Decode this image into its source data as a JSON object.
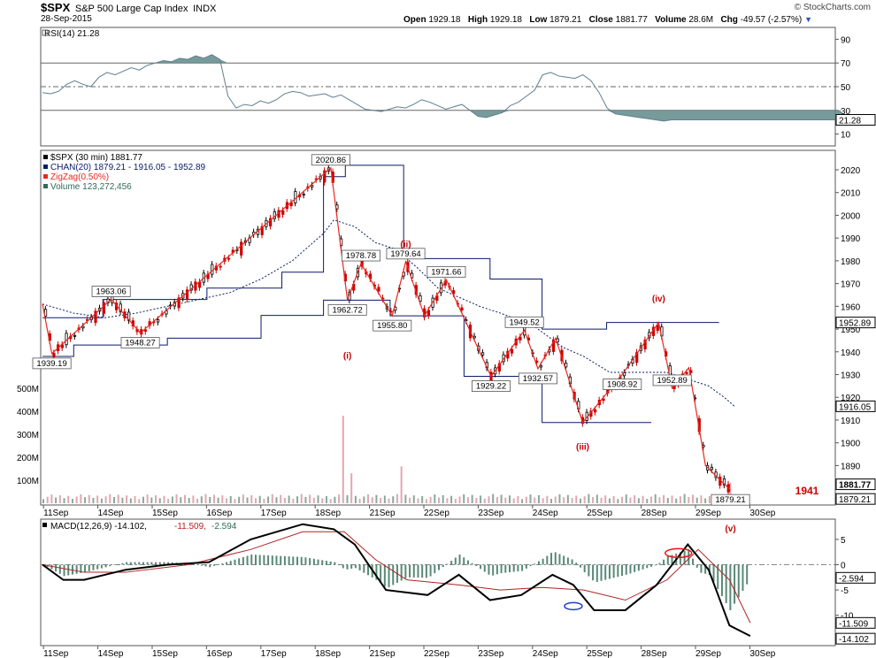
{
  "header": {
    "symbol": "$SPX",
    "name": "S&P 500 Large Cap Index",
    "exchange": "INDX",
    "date": "28-Sep-2015",
    "open_label": "Open",
    "open": "1929.18",
    "high_label": "High",
    "high": "1929.18",
    "low_label": "Low",
    "low": "1879.21",
    "close_label": "Close",
    "close": "1881.77",
    "volume_label": "Volume",
    "volume": "28.6M",
    "chg_label": "Chg",
    "chg": "-49.57 (-2.57%)",
    "credit": "© StockCharts.com"
  },
  "colors": {
    "up": "#000000",
    "down": "#cc0000",
    "zigzag": "#e8281e",
    "channel": "#0a1a6b",
    "rsi": "#5f7f8f",
    "rsi_fill": "#5f8a8a",
    "macd": "#000000",
    "signal": "#b22222",
    "histogram": "#2e6b55",
    "volume_up": "#8aa898",
    "volume_down": "#e0a8b0",
    "annotation": "#cc0000",
    "highlight_red": "#ee1111",
    "highlight_blue": "#1f3fbf"
  },
  "chart_data": [
    {
      "type": "line",
      "panel": "rsi",
      "legend": "RSI(14) 21.28",
      "ylim": [
        0,
        100
      ],
      "yticks": [
        10,
        30,
        50,
        70,
        90
      ],
      "reference_lines": [
        30,
        50,
        70
      ],
      "last_value_label": "21.28",
      "x": [
        0,
        5,
        10,
        15,
        20,
        25,
        30,
        35,
        40,
        45,
        50,
        55,
        60,
        65,
        70,
        75,
        80,
        85,
        90,
        95,
        100,
        105,
        110,
        115,
        120,
        125,
        130,
        135,
        140,
        145,
        150,
        155,
        160,
        165,
        170,
        175,
        180,
        185,
        190,
        195,
        200,
        205,
        210,
        215,
        220,
        225,
        230,
        235,
        240,
        245,
        250,
        255,
        260,
        265,
        270,
        275,
        280,
        285,
        290,
        295,
        300,
        305,
        310,
        315,
        320,
        325,
        330,
        335,
        340,
        345,
        350,
        355,
        360,
        365,
        370,
        375,
        380,
        385,
        390,
        395,
        400,
        405,
        410,
        415,
        420,
        425,
        430,
        435,
        440,
        445,
        450,
        455,
        460,
        465,
        470,
        475,
        480,
        485,
        490,
        495
      ],
      "values": [
        45,
        44,
        46,
        52,
        55,
        52,
        50,
        58,
        62,
        60,
        63,
        66,
        64,
        68,
        70,
        72,
        71,
        74,
        73,
        76,
        74,
        77,
        73,
        42,
        32,
        35,
        34,
        38,
        36,
        39,
        44,
        46,
        45,
        42,
        43,
        44,
        41,
        43,
        39,
        35,
        31,
        30,
        29,
        31,
        33,
        32,
        35,
        39,
        37,
        34,
        31,
        33,
        35,
        30,
        25,
        24,
        26,
        28,
        34,
        37,
        42,
        47,
        60,
        62,
        59,
        58,
        57,
        60,
        55,
        45,
        32,
        27,
        26,
        25,
        24,
        23,
        22,
        21,
        22,
        22,
        22,
        22,
        22,
        22,
        22,
        22,
        22,
        22,
        22,
        22,
        22,
        22,
        22,
        22,
        22,
        22,
        22,
        22,
        22,
        22
      ]
    },
    {
      "type": "line",
      "panel": "price",
      "legend": [
        "$SPX (30 min) 1881.77",
        "CHAN(20) 1879.21 - 1916.05 - 1952.89",
        "ZigZag(0.50%)",
        "Volume 123,272,456"
      ],
      "ylim": [
        1875,
        2027
      ],
      "yticks": [
        1890,
        1900,
        1910,
        1920,
        1930,
        1940,
        1950,
        1960,
        1970,
        1980,
        1990,
        2000,
        2010,
        2020
      ],
      "right_labels": [
        "1952.89",
        "1916.05",
        "1881.77",
        "1879.21"
      ],
      "zigzag": {
        "points": [
          [
            0,
            1961
          ],
          [
            9,
            1939.19
          ],
          [
            66,
            1963.06
          ],
          [
            94,
            1948.27
          ],
          [
            277,
            2020.86
          ],
          [
            293,
            1962.72
          ],
          [
            306,
            1978.78
          ],
          [
            336,
            1955.8
          ],
          [
            349,
            1979.64
          ],
          [
            367,
            1955.8
          ],
          [
            388,
            1971.66
          ],
          [
            431,
            1929.22
          ],
          [
            463,
            1949.52
          ],
          [
            476,
            1932.57
          ],
          [
            493,
            1946
          ],
          [
            519,
            1908.92
          ],
          [
            557,
            1930
          ],
          [
            592,
            1952.89
          ],
          [
            605,
            1924
          ],
          [
            621,
            1933
          ],
          [
            637,
            1890
          ],
          [
            661,
            1879.21
          ]
        ],
        "labels": [
          "1939.19",
          "1963.06",
          "1948.27",
          "2020.86",
          "1962.72",
          "1978.78",
          "1955.80",
          "1979.64",
          "1971.66",
          "1929.22",
          "1949.52",
          "1932.57",
          "1908.92",
          "1952.89",
          "1879.21"
        ]
      },
      "wave_labels": [
        "(ii)",
        "(i)",
        "(iii)",
        "(iv)",
        "(v)"
      ],
      "big_label": "1941",
      "channel_upper": [
        [
          0,
          1955
        ],
        [
          58,
          1955
        ],
        [
          58,
          1963
        ],
        [
          158,
          1963
        ],
        [
          158,
          1968
        ],
        [
          230,
          1968
        ],
        [
          230,
          1975
        ],
        [
          270,
          1975
        ],
        [
          270,
          2017
        ],
        [
          291,
          2017
        ],
        [
          291,
          2022
        ],
        [
          347,
          2022
        ],
        [
          347,
          1981
        ],
        [
          430,
          1981
        ],
        [
          430,
          1972
        ],
        [
          480,
          1972
        ],
        [
          480,
          1950
        ],
        [
          542,
          1950
        ],
        [
          542,
          1952.89
        ],
        [
          650,
          1952.89
        ]
      ],
      "channel_lower": [
        [
          0,
          1938
        ],
        [
          30,
          1938
        ],
        [
          30,
          1943
        ],
        [
          120,
          1943
        ],
        [
          120,
          1946
        ],
        [
          210,
          1946
        ],
        [
          210,
          1956
        ],
        [
          270,
          1956
        ],
        [
          270,
          1962.72
        ],
        [
          334,
          1962.72
        ],
        [
          334,
          1955.8
        ],
        [
          405,
          1955.8
        ],
        [
          405,
          1929.22
        ],
        [
          480,
          1929.22
        ],
        [
          480,
          1908.92
        ],
        [
          585,
          1908.92
        ]
      ],
      "channel_mid": [
        [
          0,
          1961
        ],
        [
          30,
          1957
        ],
        [
          60,
          1955
        ],
        [
          90,
          1957
        ],
        [
          120,
          1960
        ],
        [
          150,
          1963
        ],
        [
          180,
          1966
        ],
        [
          210,
          1972
        ],
        [
          240,
          1980
        ],
        [
          270,
          1992
        ],
        [
          280,
          1998
        ],
        [
          300,
          1995
        ],
        [
          320,
          1988
        ],
        [
          340,
          1985
        ],
        [
          360,
          1977
        ],
        [
          380,
          1968
        ],
        [
          400,
          1964
        ],
        [
          420,
          1960
        ],
        [
          440,
          1957
        ],
        [
          470,
          1952
        ],
        [
          500,
          1942
        ],
        [
          520,
          1938
        ],
        [
          545,
          1931
        ],
        [
          580,
          1931
        ],
        [
          600,
          1931
        ],
        [
          620,
          1928
        ],
        [
          640,
          1925
        ],
        [
          655,
          1920
        ],
        [
          665,
          1916
        ]
      ],
      "volume_ticks": [
        "100M",
        "200M",
        "300M",
        "400M",
        "500M"
      ],
      "volume_peaks_m": [
        {
          "x": 288,
          "v": 380
        },
        {
          "x": 344,
          "v": 160
        },
        {
          "x": 296,
          "v": 130
        },
        {
          "x": 631,
          "v": 120
        },
        {
          "x": 660,
          "v": 90
        }
      ],
      "x_labels": [
        "11Sep",
        "14Sep",
        "15Sep",
        "16Sep",
        "17Sep",
        "18Sep",
        "21Sep",
        "22Sep",
        "23Sep",
        "24Sep",
        "25Sep",
        "28Sep",
        "29Sep",
        "30Sep"
      ]
    },
    {
      "type": "line",
      "panel": "macd",
      "legend": [
        "MACD(12,26,9)",
        "-14.102",
        "-11.509",
        "-2.594"
      ],
      "ylim": [
        -16,
        9
      ],
      "yticks": [
        -10,
        -5,
        0,
        5
      ],
      "ytick_labels": [
        "-10",
        "-5",
        "0",
        "5"
      ],
      "right_labels": [
        "-2.594",
        "-11.509",
        "-14.102"
      ]
    }
  ]
}
